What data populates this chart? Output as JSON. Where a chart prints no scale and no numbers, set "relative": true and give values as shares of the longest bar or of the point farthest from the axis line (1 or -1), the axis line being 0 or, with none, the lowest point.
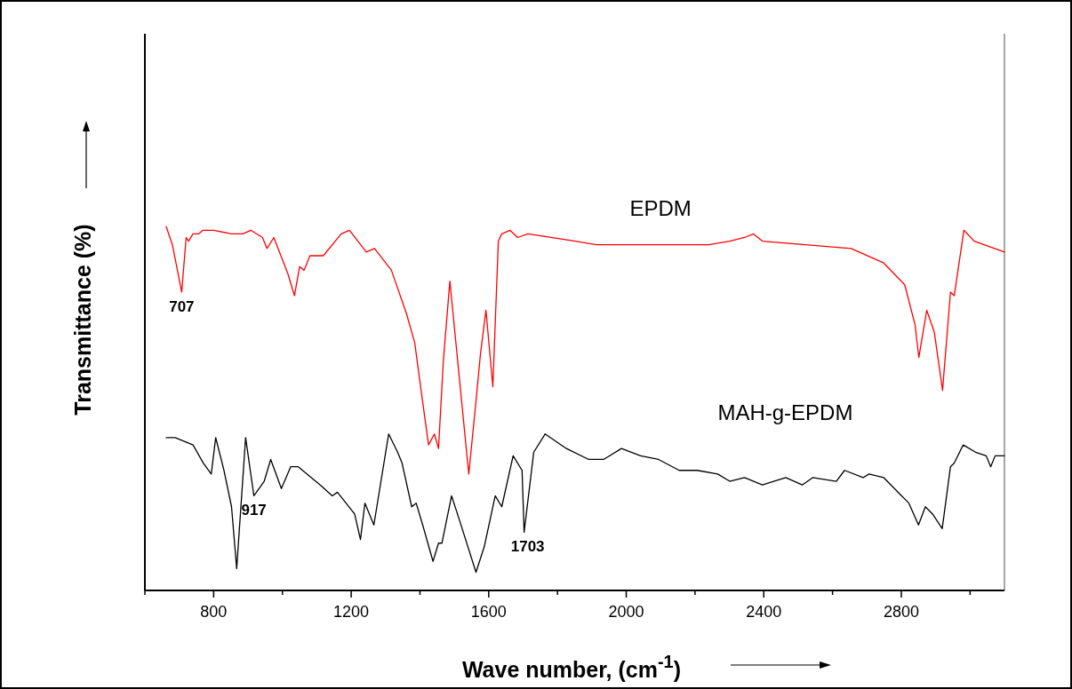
{
  "chart_data": {
    "type": "line",
    "relative": true,
    "xlabel": "Wave number, (cm$^{-1}$)",
    "ylabel": "Transmittance (%)",
    "xlim": [
      600,
      3100
    ],
    "xticks": [
      {
        "value": 600,
        "label": null
      },
      800,
      {
        "value": 1000,
        "label": null
      },
      1200,
      {
        "value": 1400,
        "label": null
      },
      1600,
      {
        "value": 1800,
        "label": null
      },
      2000,
      {
        "value": 2200,
        "label": null
      },
      2400,
      {
        "value": 2600,
        "label": null
      },
      2800,
      {
        "value": 3000,
        "label": null
      }
    ],
    "grid": false,
    "marker": "none",
    "line_style": "solid",
    "series": [
      {
        "name": "EPDM",
        "color": "#ff0000",
        "x": [
          662,
          680,
          707,
          720,
          727,
          740,
          756,
          769,
          800,
          852,
          885,
          908,
          942,
          955,
          975,
          1016,
          1035,
          1050,
          1063,
          1080,
          1119,
          1171,
          1195,
          1244,
          1268,
          1317,
          1361,
          1385,
          1399,
          1425,
          1442,
          1454,
          1468,
          1487,
          1516,
          1542,
          1563,
          1576,
          1592,
          1612,
          1628,
          1638,
          1662,
          1684,
          1714,
          1852,
          1913,
          1990,
          2163,
          2240,
          2301,
          2344,
          2370,
          2396,
          2654,
          2749,
          2810,
          2840,
          2851,
          2874,
          2896,
          2920,
          2943,
          2954,
          2982,
          3012,
          3100
        ],
        "values": [
          1.0,
          0.95,
          0.82,
          0.97,
          0.96,
          0.98,
          0.98,
          0.99,
          0.99,
          0.98,
          0.98,
          0.99,
          0.97,
          0.94,
          0.97,
          0.87,
          0.81,
          0.89,
          0.88,
          0.92,
          0.92,
          0.98,
          0.99,
          0.93,
          0.94,
          0.88,
          0.76,
          0.68,
          0.58,
          0.4,
          0.43,
          0.39,
          0.63,
          0.85,
          0.57,
          0.32,
          0.52,
          0.65,
          0.77,
          0.56,
          0.96,
          0.98,
          0.99,
          0.97,
          0.98,
          0.96,
          0.95,
          0.95,
          0.95,
          0.95,
          0.96,
          0.97,
          0.98,
          0.96,
          0.94,
          0.9,
          0.84,
          0.73,
          0.64,
          0.77,
          0.71,
          0.55,
          0.82,
          0.81,
          0.99,
          0.96,
          0.93
        ]
      },
      {
        "name": "MAH-g-EPDM",
        "color": "#000000",
        "x": [
          662,
          688,
          740,
          770,
          793,
          806,
          830,
          852,
          867,
          893,
          917,
          947,
          966,
          997,
          1024,
          1046,
          1110,
          1145,
          1160,
          1210,
          1227,
          1240,
          1266,
          1309,
          1335,
          1348,
          1376,
          1389,
          1408,
          1438,
          1454,
          1464,
          1492,
          1516,
          1563,
          1587,
          1619,
          1638,
          1671,
          1697,
          1703,
          1731,
          1764,
          1826,
          1891,
          1934,
          1986,
          2042,
          2094,
          2154,
          2206,
          2266,
          2301,
          2344,
          2396,
          2464,
          2512,
          2542,
          2611,
          2635,
          2689,
          2706,
          2749,
          2801,
          2822,
          2850,
          2870,
          2891,
          2919,
          2943,
          2954,
          2980,
          3016,
          3047,
          3060,
          3073,
          3100
        ],
        "values": [
          0.42,
          0.42,
          0.4,
          0.35,
          0.32,
          0.42,
          0.33,
          0.23,
          0.06,
          0.42,
          0.26,
          0.3,
          0.36,
          0.28,
          0.34,
          0.34,
          0.29,
          0.26,
          0.27,
          0.21,
          0.14,
          0.24,
          0.18,
          0.43,
          0.38,
          0.35,
          0.23,
          0.24,
          0.18,
          0.08,
          0.13,
          0.13,
          0.26,
          0.19,
          0.05,
          0.12,
          0.26,
          0.23,
          0.37,
          0.33,
          0.16,
          0.38,
          0.43,
          0.39,
          0.36,
          0.36,
          0.39,
          0.37,
          0.36,
          0.33,
          0.33,
          0.32,
          0.3,
          0.31,
          0.29,
          0.31,
          0.29,
          0.31,
          0.3,
          0.33,
          0.31,
          0.32,
          0.31,
          0.26,
          0.24,
          0.18,
          0.23,
          0.21,
          0.17,
          0.34,
          0.35,
          0.4,
          0.38,
          0.37,
          0.34,
          0.37,
          0.37
        ]
      }
    ],
    "annotations": [
      {
        "text": "707",
        "x": 707,
        "y": 0.82
      },
      {
        "text": "917",
        "x": 917,
        "y": 0.26
      },
      {
        "text": "1703",
        "x": 1703,
        "y": 0.16
      }
    ]
  }
}
